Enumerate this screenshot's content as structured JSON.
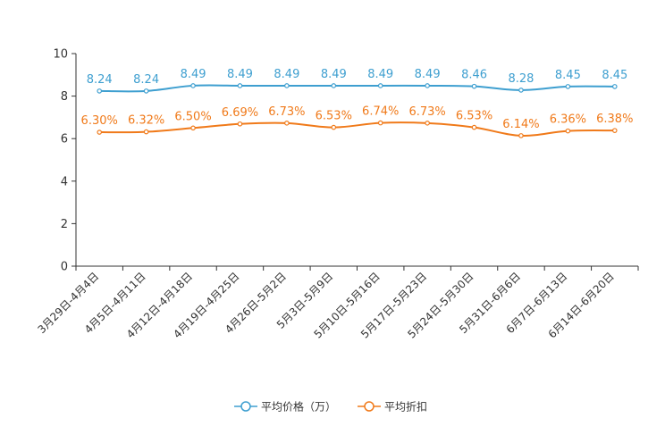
{
  "chart_data": {
    "type": "line",
    "title": "",
    "xlabel": "",
    "ylabel": "",
    "ylim": [
      0,
      10
    ],
    "yticks": [
      0,
      2,
      4,
      6,
      8,
      10
    ],
    "grid": false,
    "legend_position": "bottom-center",
    "categories": [
      "3月29日-4月4日",
      "4月5日-4月11日",
      "4月12日-4月18日",
      "4月19日-4月25日",
      "4月26日-5月2日",
      "5月3日-5月9日",
      "5月10日-5月16日",
      "5月17日-5月23日",
      "5月24日-5月30日",
      "5月31日-6月6日",
      "6月7日-6月13日",
      "6月14日-6月20日"
    ],
    "series": [
      {
        "name": "平均价格（万）",
        "color": "#3e9fd0",
        "values": [
          8.24,
          8.24,
          8.49,
          8.49,
          8.49,
          8.49,
          8.49,
          8.49,
          8.46,
          8.28,
          8.45,
          8.45
        ],
        "labels": [
          "8.24",
          "8.24",
          "8.49",
          "8.49",
          "8.49",
          "8.49",
          "8.49",
          "8.49",
          "8.46",
          "8.28",
          "8.45",
          "8.45"
        ]
      },
      {
        "name": "平均折扣",
        "color": "#f07a1a",
        "values": [
          6.3,
          6.32,
          6.5,
          6.69,
          6.73,
          6.53,
          6.74,
          6.73,
          6.53,
          6.14,
          6.36,
          6.38
        ],
        "labels": [
          "6.30%",
          "6.32%",
          "6.50%",
          "6.69%",
          "6.73%",
          "6.53%",
          "6.74%",
          "6.73%",
          "6.53%",
          "6.14%",
          "6.36%",
          "6.38%"
        ]
      }
    ]
  }
}
